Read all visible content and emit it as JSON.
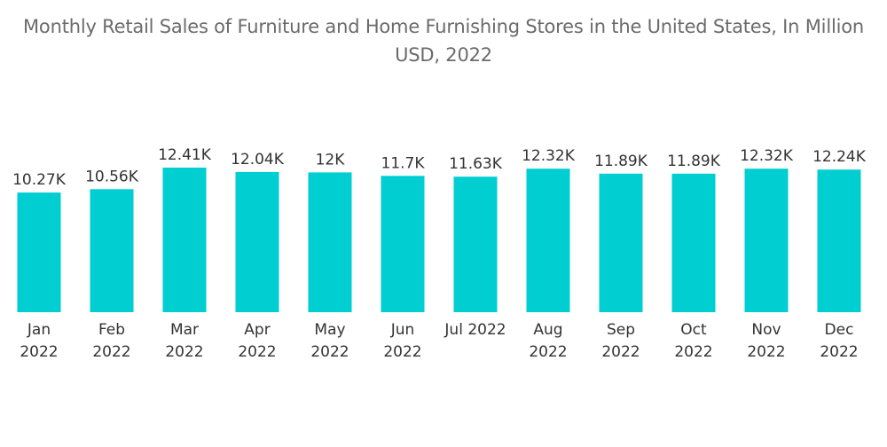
{
  "chart_data": {
    "type": "bar",
    "title": "Monthly Retail Sales of Furniture and Home Furnishing Stores in the United States, In Million USD, 2022",
    "xlabel": "",
    "ylabel": "",
    "categories": [
      "Jan 2022",
      "Feb 2022",
      "Mar 2022",
      "Apr 2022",
      "May 2022",
      "Jun 2022",
      "Jul 2022",
      "Aug 2022",
      "Sep 2022",
      "Oct 2022",
      "Nov 2022",
      "Dec 2022"
    ],
    "values": [
      10.27,
      10.56,
      12.41,
      12.04,
      12.0,
      11.7,
      11.63,
      12.32,
      11.89,
      11.89,
      12.32,
      12.24
    ],
    "data_labels": [
      "10.27K",
      "10.56K",
      "12.41K",
      "12.04K",
      "12K",
      "11.7K",
      "11.63K",
      "12.32K",
      "11.89K",
      "11.89K",
      "12.32K",
      "12.24K"
    ],
    "tick_lines": [
      [
        "Jan",
        "2022"
      ],
      [
        "Feb",
        "2022"
      ],
      [
        "Mar",
        "2022"
      ],
      [
        "Apr",
        "2022"
      ],
      [
        "May",
        "2022"
      ],
      [
        "Jun",
        "2022"
      ],
      [
        "Jul 2022"
      ],
      [
        "Aug",
        "2022"
      ],
      [
        "Sep",
        "2022"
      ],
      [
        "Oct",
        "2022"
      ],
      [
        "Nov",
        "2022"
      ],
      [
        "Dec",
        "2022"
      ]
    ],
    "ylim": [
      0,
      12.41
    ],
    "grid": false,
    "legend": "none",
    "bar_color": "#00ced1"
  }
}
